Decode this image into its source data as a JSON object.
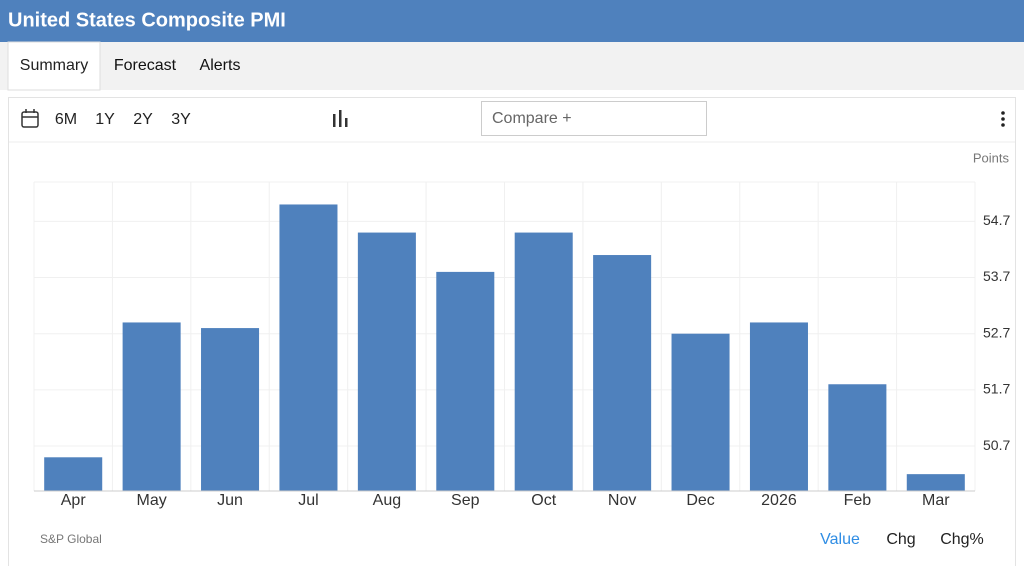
{
  "header": {
    "title": "United States Composite PMI"
  },
  "tabs": [
    "Summary",
    "Forecast",
    "Alerts"
  ],
  "toolbar": {
    "ranges": [
      "6M",
      "1Y",
      "2Y",
      "3Y"
    ],
    "compare": "Compare +"
  },
  "footer": {
    "source": "S&P Global",
    "views": [
      "Value",
      "Chg",
      "Chg%"
    ]
  },
  "chart_data": {
    "type": "bar",
    "y_axis_label": "Points",
    "categories": [
      "Apr",
      "May",
      "Jun",
      "Jul",
      "Aug",
      "Sep",
      "Oct",
      "Nov",
      "Dec",
      "2026",
      "Feb",
      "Mar"
    ],
    "values": [
      50.5,
      52.9,
      52.8,
      55.0,
      54.5,
      53.8,
      54.5,
      54.1,
      52.7,
      52.9,
      51.8,
      50.2
    ],
    "color": "#4f81bd",
    "ylim": [
      49.9,
      55.4
    ],
    "yticks": [
      50.7,
      51.7,
      52.7,
      53.7,
      54.7
    ],
    "grid": true
  }
}
